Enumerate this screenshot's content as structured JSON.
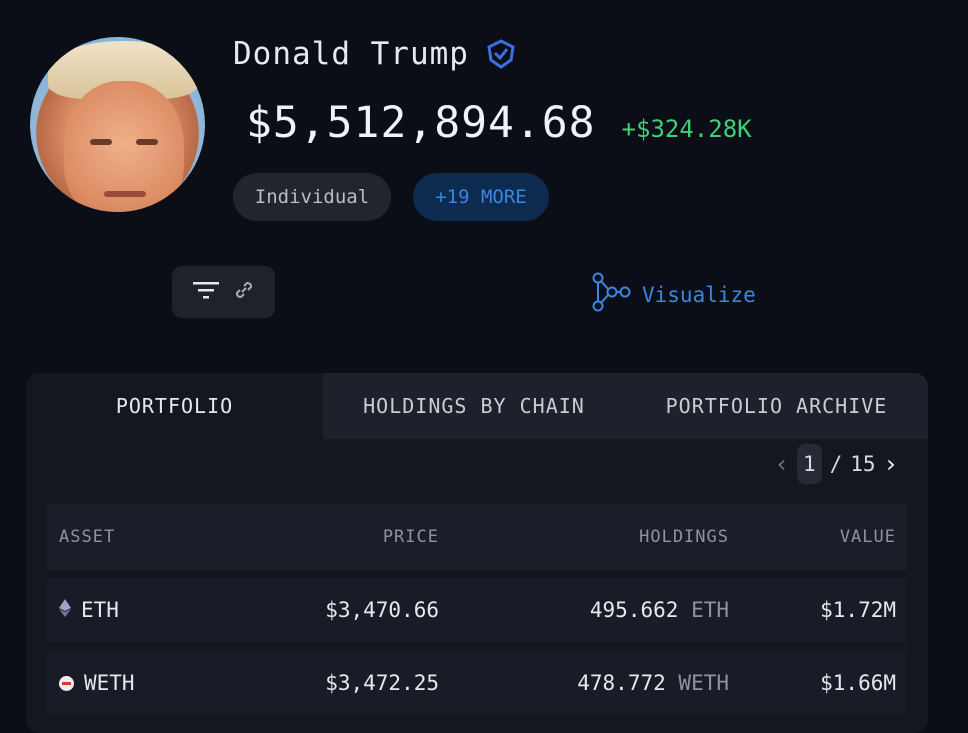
{
  "profile": {
    "name": "Donald Trump",
    "balance": "$5,512,894.68",
    "change": "+$324.28K",
    "tags": [
      "Individual",
      "+19 MORE"
    ]
  },
  "toolbar": {
    "visualize_label": "Visualize"
  },
  "tabs": [
    {
      "label": "PORTFOLIO",
      "active": true
    },
    {
      "label": "HOLDINGS BY CHAIN",
      "active": false
    },
    {
      "label": "PORTFOLIO ARCHIVE",
      "active": false
    }
  ],
  "pagination": {
    "current": "1",
    "separator": "/",
    "total": "15"
  },
  "table": {
    "headers": {
      "asset": "ASSET",
      "price": "PRICE",
      "holdings": "HOLDINGS",
      "value": "VALUE"
    },
    "rows": [
      {
        "asset": "ETH",
        "price": "$3,470.66",
        "holdings_amount": "495.662",
        "holdings_unit": "ETH",
        "value": "$1.72M"
      },
      {
        "asset": "WETH",
        "price": "$3,472.25",
        "holdings_amount": "478.772",
        "holdings_unit": "WETH",
        "value": "$1.66M"
      }
    ]
  },
  "colors": {
    "accent": "#3a86e0",
    "positive": "#3fd07a",
    "background": "#0b0e17"
  }
}
